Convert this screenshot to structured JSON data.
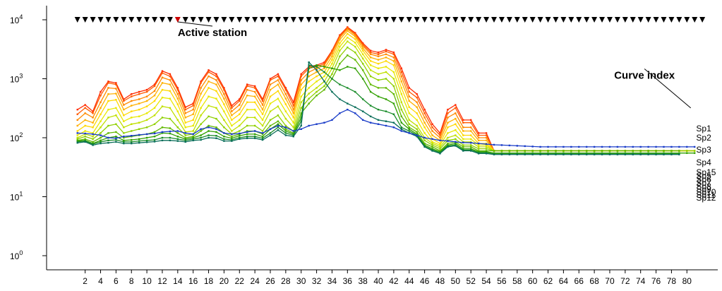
{
  "chart_data": {
    "type": "line",
    "y_scale": "log",
    "ylim": [
      1,
      10000
    ],
    "y_ticks": [
      {
        "value": 1,
        "base": "10",
        "exp": "0"
      },
      {
        "value": 10,
        "base": "10",
        "exp": "1"
      },
      {
        "value": 100,
        "base": "10",
        "exp": "2"
      },
      {
        "value": 1000,
        "base": "10",
        "exp": "3"
      },
      {
        "value": 10000,
        "base": "10",
        "exp": "4"
      }
    ],
    "xlim": [
      -3,
      84
    ],
    "x_ticks": [
      2,
      4,
      6,
      8,
      10,
      12,
      14,
      16,
      18,
      20,
      22,
      24,
      26,
      28,
      30,
      32,
      34,
      36,
      38,
      40,
      42,
      44,
      46,
      48,
      50,
      52,
      54,
      56,
      58,
      60,
      62,
      64,
      66,
      68,
      70,
      72,
      74,
      76,
      78,
      80
    ],
    "station_markers": {
      "x_start": 1,
      "x_end": 82,
      "y": 10000,
      "active_station": 14,
      "marker_color": "#000000",
      "active_color": "#cc0000"
    },
    "annotations": [
      {
        "text": "Active station",
        "x": 18.5,
        "y": 5300,
        "arrow_to": [
          14,
          9200
        ]
      },
      {
        "text": "Curve index",
        "x": 74.5,
        "y": 1000,
        "arrow_to": [
          80.5,
          320
        ]
      }
    ],
    "curve_labels": [
      "Sp1",
      "Sp2",
      "Sp3",
      "Sp4",
      "Sp15",
      "Sp5",
      "Sp6",
      "Sp7",
      "Sp8",
      "Sp9",
      "Sp10",
      "Sp11",
      "Sp12"
    ],
    "grid": false,
    "legend": "none",
    "series": [
      {
        "color": "#ff2a00",
        "values": [
          300,
          360,
          280,
          600,
          900,
          850,
          450,
          550,
          600,
          650,
          800,
          1350,
          1200,
          700,
          330,
          380,
          900,
          1400,
          1200,
          700,
          350,
          450,
          800,
          750,
          450,
          1000,
          1200,
          700,
          400,
          1200,
          1600,
          1700,
          1900,
          3000,
          5500,
          7500,
          6000,
          4000,
          3000,
          2800,
          3100,
          2800,
          1500,
          700,
          550,
          300,
          170,
          120,
          300,
          360,
          200,
          200,
          120,
          120,
          60,
          60,
          60,
          60,
          60,
          60,
          60,
          60,
          60,
          60,
          60,
          60,
          60,
          60,
          60,
          60,
          60,
          60,
          60,
          60,
          60,
          60,
          60,
          60,
          60,
          60,
          60
        ]
      },
      {
        "color": "#ff5a00",
        "values": [
          250,
          320,
          260,
          520,
          850,
          800,
          420,
          500,
          550,
          600,
          750,
          1250,
          1100,
          650,
          300,
          350,
          850,
          1300,
          1100,
          650,
          320,
          420,
          750,
          700,
          420,
          950,
          1100,
          650,
          350,
          1100,
          1500,
          1600,
          1800,
          2900,
          5300,
          7300,
          5800,
          3800,
          2800,
          2600,
          2900,
          2600,
          1300,
          600,
          480,
          260,
          150,
          110,
          260,
          320,
          180,
          180,
          110,
          110,
          60,
          60,
          60,
          60,
          60,
          60,
          60,
          60,
          60,
          60,
          60,
          60,
          60,
          60,
          60,
          60,
          60,
          60,
          60,
          60,
          60,
          60,
          60,
          60,
          60,
          60,
          60
        ]
      },
      {
        "color": "#ff8a00",
        "values": [
          200,
          260,
          220,
          400,
          700,
          680,
          360,
          420,
          450,
          500,
          620,
          1050,
          950,
          550,
          260,
          300,
          700,
          1100,
          950,
          550,
          280,
          360,
          650,
          600,
          360,
          800,
          950,
          550,
          300,
          950,
          1300,
          1500,
          1700,
          2700,
          5000,
          7000,
          5500,
          3600,
          2600,
          2400,
          2600,
          2300,
          1100,
          500,
          400,
          220,
          130,
          100,
          220,
          260,
          150,
          150,
          100,
          100,
          60,
          60,
          60,
          60,
          60,
          60,
          60,
          60,
          60,
          60,
          60,
          60,
          60,
          60,
          60,
          60,
          60,
          60,
          60,
          60,
          60,
          60,
          60,
          60,
          60,
          60,
          60
        ]
      },
      {
        "color": "#ffb000",
        "values": [
          160,
          200,
          180,
          320,
          550,
          560,
          300,
          350,
          380,
          420,
          520,
          850,
          800,
          460,
          220,
          250,
          560,
          900,
          800,
          460,
          240,
          300,
          520,
          500,
          300,
          650,
          800,
          460,
          260,
          800,
          1100,
          1300,
          1500,
          2400,
          4600,
          6500,
          5200,
          3300,
          2300,
          2100,
          2300,
          2000,
          900,
          420,
          330,
          180,
          110,
          90,
          180,
          210,
          130,
          130,
          90,
          90,
          60,
          60,
          60,
          60,
          60,
          60,
          60,
          60,
          60,
          60,
          60,
          60,
          60,
          60,
          60,
          60,
          60,
          60,
          60,
          60,
          60,
          60,
          60,
          60,
          60,
          60,
          60
        ]
      },
      {
        "color": "#ffd800",
        "values": [
          130,
          160,
          150,
          250,
          420,
          440,
          240,
          280,
          300,
          340,
          420,
          650,
          620,
          370,
          180,
          200,
          430,
          700,
          620,
          370,
          200,
          250,
          400,
          400,
          250,
          500,
          620,
          370,
          220,
          650,
          900,
          1100,
          1300,
          2100,
          4000,
          5800,
          4700,
          3000,
          2000,
          1800,
          2000,
          1700,
          700,
          330,
          260,
          150,
          95,
          80,
          150,
          170,
          110,
          110,
          80,
          80,
          60,
          60,
          60,
          60,
          60,
          60,
          60,
          60,
          60,
          60,
          60,
          60,
          60,
          60,
          60,
          60,
          60,
          60,
          60,
          60,
          60,
          60,
          60,
          60,
          60,
          60,
          60
        ]
      },
      {
        "color": "#e8e800",
        "values": [
          110,
          130,
          120,
          190,
          300,
          320,
          190,
          220,
          230,
          260,
          320,
          480,
          460,
          280,
          150,
          160,
          320,
          500,
          460,
          280,
          160,
          200,
          300,
          300,
          200,
          380,
          460,
          280,
          180,
          500,
          700,
          900,
          1100,
          1800,
          3500,
          5000,
          4100,
          2600,
          1700,
          1500,
          1600,
          1300,
          550,
          260,
          200,
          120,
          85,
          75,
          120,
          135,
          95,
          95,
          75,
          75,
          60,
          60,
          60,
          60,
          60,
          60,
          60,
          60,
          60,
          60,
          60,
          60,
          60,
          60,
          60,
          60,
          60,
          60,
          60,
          60,
          60,
          60,
          60,
          60,
          60,
          60,
          60
        ]
      },
      {
        "color": "#c0e000",
        "values": [
          100,
          115,
          105,
          150,
          220,
          240,
          150,
          170,
          180,
          200,
          240,
          340,
          320,
          200,
          125,
          130,
          240,
          350,
          320,
          200,
          130,
          160,
          220,
          220,
          160,
          280,
          340,
          210,
          150,
          400,
          560,
          700,
          900,
          1500,
          3000,
          4300,
          3500,
          2200,
          1400,
          1200,
          1300,
          1000,
          400,
          200,
          160,
          100,
          80,
          70,
          100,
          110,
          85,
          85,
          70,
          70,
          60,
          60,
          60,
          60,
          60,
          60,
          60,
          60,
          60,
          60,
          60,
          60,
          60,
          60,
          60,
          60,
          60,
          60,
          60,
          60,
          60,
          60,
          60,
          60,
          60,
          60,
          60
        ]
      },
      {
        "color": "#90d000",
        "values": [
          95,
          105,
          95,
          120,
          160,
          170,
          120,
          130,
          140,
          150,
          170,
          220,
          210,
          150,
          110,
          115,
          170,
          230,
          210,
          150,
          115,
          130,
          160,
          160,
          130,
          200,
          240,
          160,
          130,
          320,
          460,
          600,
          750,
          1200,
          2400,
          3400,
          2800,
          1800,
          1100,
          950,
          1000,
          750,
          300,
          170,
          140,
          90,
          75,
          65,
          90,
          95,
          75,
          75,
          65,
          65,
          60,
          60,
          60,
          60,
          60,
          60,
          60,
          60,
          60,
          60,
          60,
          60,
          60,
          60,
          60,
          60,
          60,
          60,
          60,
          60,
          60,
          60,
          60,
          60,
          60,
          60,
          60
        ]
      },
      {
        "color": "#60b800",
        "values": [
          90,
          95,
          85,
          100,
          120,
          125,
          100,
          105,
          110,
          115,
          125,
          150,
          145,
          120,
          100,
          105,
          130,
          160,
          150,
          120,
          105,
          115,
          130,
          130,
          115,
          160,
          190,
          140,
          120,
          260,
          380,
          520,
          650,
          1000,
          1800,
          2500,
          2100,
          1400,
          800,
          700,
          700,
          550,
          230,
          150,
          125,
          80,
          70,
          60,
          80,
          85,
          70,
          70,
          60,
          60,
          60,
          60,
          60,
          60,
          60,
          60,
          60,
          60,
          60,
          60,
          60,
          60,
          60,
          60,
          60,
          60,
          60,
          60,
          60,
          60,
          60,
          60,
          60,
          60,
          60
        ]
      },
      {
        "color": "#30a000",
        "values": [
          88,
          90,
          80,
          90,
          100,
          105,
          90,
          92,
          95,
          100,
          105,
          120,
          118,
          105,
          95,
          100,
          110,
          130,
          125,
          105,
          98,
          108,
          115,
          115,
          105,
          140,
          170,
          130,
          115,
          220,
          1500,
          1700,
          1600,
          1500,
          1400,
          1600,
          1500,
          1000,
          600,
          500,
          450,
          380,
          180,
          140,
          115,
          75,
          65,
          58,
          75,
          80,
          65,
          65,
          58,
          58,
          55,
          55,
          55,
          55,
          55,
          55,
          55,
          55,
          55,
          55,
          55,
          55,
          55,
          55,
          55,
          55,
          55,
          55,
          55,
          55,
          55,
          55,
          55,
          55,
          55,
          55,
          55
        ]
      },
      {
        "color": "#1a8c2a",
        "values": [
          85,
          88,
          78,
          85,
          90,
          92,
          85,
          85,
          88,
          90,
          92,
          100,
          100,
          95,
          90,
          95,
          100,
          110,
          108,
          95,
          92,
          100,
          105,
          105,
          98,
          120,
          150,
          120,
          110,
          190,
          1700,
          1600,
          1300,
          1000,
          800,
          700,
          600,
          450,
          350,
          300,
          280,
          250,
          150,
          130,
          110,
          72,
          62,
          56,
          72,
          76,
          62,
          62,
          56,
          56,
          53,
          53,
          53,
          53,
          53,
          53,
          53,
          53,
          53,
          53,
          53,
          53,
          53,
          53,
          53,
          53,
          53,
          53,
          53,
          53,
          53,
          53,
          53,
          53,
          53
        ]
      },
      {
        "color": "#0a6e5a",
        "values": [
          82,
          85,
          75,
          80,
          82,
          85,
          80,
          80,
          82,
          84,
          86,
          90,
          90,
          88,
          85,
          90,
          92,
          100,
          98,
          88,
          88,
          95,
          98,
          98,
          92,
          110,
          135,
          110,
          105,
          160,
          1900,
          1400,
          900,
          600,
          450,
          380,
          330,
          280,
          230,
          200,
          190,
          180,
          140,
          120,
          105,
          70,
          60,
          54,
          70,
          73,
          60,
          60,
          54,
          54,
          52,
          52,
          52,
          52,
          52,
          52,
          52,
          52,
          52,
          52,
          52,
          52,
          52,
          52,
          52,
          52,
          52,
          52,
          52,
          52,
          52,
          52,
          52,
          52,
          52
        ]
      },
      {
        "color": "#1a3cc8",
        "values": [
          120,
          118,
          115,
          110,
          100,
          98,
          105,
          108,
          112,
          115,
          118,
          125,
          128,
          130,
          120,
          115,
          140,
          150,
          140,
          120,
          115,
          118,
          125,
          130,
          120,
          140,
          160,
          150,
          130,
          140,
          160,
          170,
          180,
          200,
          260,
          300,
          260,
          200,
          180,
          170,
          160,
          150,
          130,
          120,
          110,
          100,
          95,
          90,
          88,
          85,
          83,
          82,
          80,
          78,
          76,
          75,
          74,
          73,
          72,
          71,
          70,
          70,
          70,
          70,
          70,
          70,
          70,
          70,
          70,
          70,
          70,
          70,
          70,
          70,
          70,
          70,
          70,
          70,
          70,
          70,
          70
        ]
      }
    ]
  }
}
